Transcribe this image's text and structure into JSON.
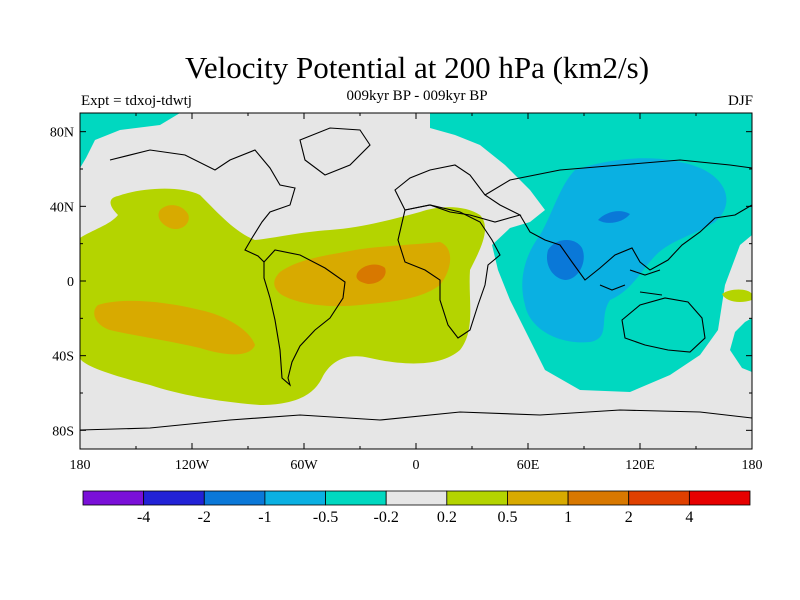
{
  "header": {
    "title": "Velocity Potential at 200 hPa (km2/s)",
    "subtitle": "009kyr BP - 009kyr BP",
    "left_label": "Expt = tdxoj-tdwtj",
    "right_label": "DJF"
  },
  "map": {
    "projection": "cylindrical-equidistant",
    "lon_range": [
      -180,
      180
    ],
    "lat_range": [
      -90,
      90
    ],
    "x_ticks": [
      "180",
      "120W",
      "60W",
      "0",
      "60E",
      "120E",
      "180"
    ],
    "x_tick_values": [
      -180,
      -120,
      -60,
      0,
      60,
      120,
      180
    ],
    "y_ticks": [
      "80N",
      "40N",
      "0",
      "40S",
      "80S"
    ],
    "y_tick_values": [
      80,
      40,
      0,
      -40,
      -80
    ],
    "background_level": "-0.2 to 0.2"
  },
  "colorbar": {
    "colors": [
      "#7a10d8",
      "#2222d6",
      "#0a78d8",
      "#0ab0e2",
      "#00d8c0",
      "#e6e6e6",
      "#b4d400",
      "#d8aa00",
      "#d87800",
      "#e04000",
      "#e60000"
    ],
    "labels": [
      "-4",
      "-2",
      "-1",
      "-0.5",
      "-0.2",
      "0.2",
      "0.5",
      "1",
      "2",
      "4"
    ]
  }
}
